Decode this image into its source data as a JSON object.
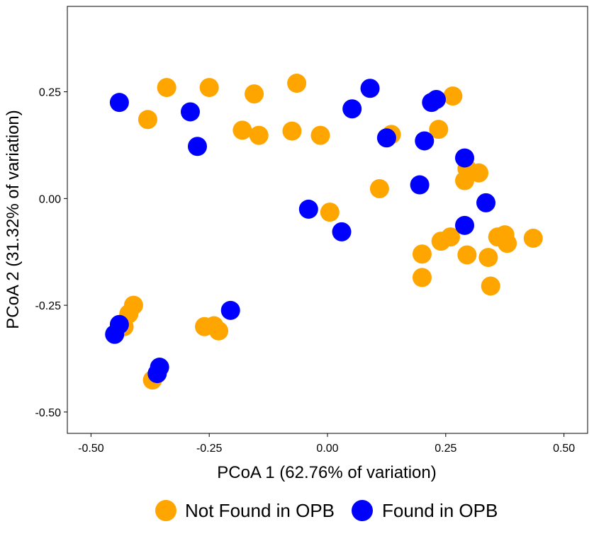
{
  "chart_data": {
    "type": "scatter",
    "title": "",
    "xlabel": "PCoA 1 (62.76% of variation)",
    "ylabel": "PCoA 2 (31.32% of variation)",
    "xlim": [
      -0.55,
      0.55
    ],
    "ylim": [
      -0.55,
      0.45
    ],
    "xticks": [
      -0.5,
      -0.25,
      0.0,
      0.25,
      0.5
    ],
    "xtick_labels": [
      "-0.50",
      "-0.25",
      "0.00",
      "0.25",
      "0.50"
    ],
    "yticks": [
      -0.5,
      -0.25,
      0.0,
      0.25
    ],
    "ytick_labels": [
      "-0.50",
      "-0.25",
      "0.00",
      "0.25"
    ],
    "grid": false,
    "legend_position": "bottom",
    "series": [
      {
        "name": "Not Found in OPB",
        "color": "#FFA500",
        "points": [
          [
            -0.34,
            0.26
          ],
          [
            -0.25,
            0.26
          ],
          [
            -0.38,
            0.185
          ],
          [
            -0.155,
            0.245
          ],
          [
            -0.065,
            0.27
          ],
          [
            -0.18,
            0.16
          ],
          [
            -0.145,
            0.148
          ],
          [
            -0.075,
            0.158
          ],
          [
            -0.015,
            0.148
          ],
          [
            0.135,
            0.15
          ],
          [
            0.265,
            0.24
          ],
          [
            0.235,
            0.162
          ],
          [
            0.295,
            0.07
          ],
          [
            0.32,
            0.06
          ],
          [
            0.29,
            0.042
          ],
          [
            0.11,
            0.023
          ],
          [
            0.005,
            -0.032
          ],
          [
            0.24,
            -0.1
          ],
          [
            0.26,
            -0.09
          ],
          [
            0.2,
            -0.13
          ],
          [
            0.295,
            -0.132
          ],
          [
            0.34,
            -0.138
          ],
          [
            0.2,
            -0.185
          ],
          [
            0.345,
            -0.205
          ],
          [
            0.36,
            -0.09
          ],
          [
            0.375,
            -0.085
          ],
          [
            0.38,
            -0.105
          ],
          [
            0.435,
            -0.093
          ],
          [
            -0.41,
            -0.25
          ],
          [
            -0.42,
            -0.27
          ],
          [
            -0.43,
            -0.3
          ],
          [
            -0.26,
            -0.3
          ],
          [
            -0.24,
            -0.298
          ],
          [
            -0.23,
            -0.31
          ],
          [
            -0.37,
            -0.425
          ]
        ]
      },
      {
        "name": "Found in OPB",
        "color": "#0000FF",
        "points": [
          [
            -0.44,
            0.225
          ],
          [
            -0.29,
            0.203
          ],
          [
            -0.275,
            0.122
          ],
          [
            0.09,
            0.258
          ],
          [
            0.052,
            0.21
          ],
          [
            0.22,
            0.225
          ],
          [
            0.23,
            0.232
          ],
          [
            0.125,
            0.142
          ],
          [
            0.205,
            0.135
          ],
          [
            0.29,
            0.095
          ],
          [
            0.195,
            0.032
          ],
          [
            0.335,
            -0.01
          ],
          [
            -0.04,
            -0.025
          ],
          [
            0.03,
            -0.078
          ],
          [
            0.29,
            -0.063
          ],
          [
            -0.205,
            -0.262
          ],
          [
            -0.44,
            -0.295
          ],
          [
            -0.45,
            -0.318
          ],
          [
            -0.355,
            -0.395
          ],
          [
            -0.36,
            -0.41
          ]
        ]
      }
    ]
  }
}
